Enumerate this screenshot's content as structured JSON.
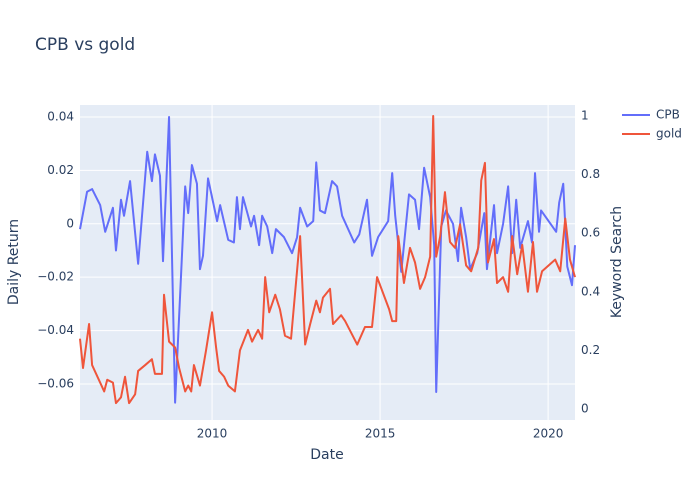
{
  "chart_data": {
    "type": "line",
    "title": "CPB vs gold",
    "x_label": "Date",
    "y_label": "Daily Return",
    "y2_label": "Keyword Search",
    "xlim": [
      2006.07,
      2020.8
    ],
    "xticks": [
      2010,
      2015,
      2020
    ],
    "ylim": [
      -0.0735,
      0.0445
    ],
    "yticks": [
      {
        "value": -0.06,
        "label": "−0.06"
      },
      {
        "value": -0.04,
        "label": "−0.04"
      },
      {
        "value": -0.02,
        "label": "−0.02"
      },
      0,
      0.02,
      0.04
    ],
    "y2lim": [
      -0.0375,
      1.0375
    ],
    "y2ticks": [
      0,
      0.2,
      0.4,
      0.6,
      0.8,
      1
    ],
    "grid": true,
    "legend": "top-right-outside",
    "series": [
      {
        "name": "CPB",
        "color": "#636efa",
        "axis": "y",
        "x": [
          2006.07,
          2006.28,
          2006.43,
          2006.67,
          2006.82,
          2007.05,
          2007.14,
          2007.29,
          2007.38,
          2007.56,
          2007.8,
          2008.07,
          2008.21,
          2008.3,
          2008.45,
          2008.54,
          2008.72,
          2008.9,
          2009.2,
          2009.29,
          2009.4,
          2009.55,
          2009.64,
          2009.73,
          2009.88,
          2010.15,
          2010.24,
          2010.48,
          2010.65,
          2010.74,
          2010.83,
          2010.92,
          2011.16,
          2011.25,
          2011.4,
          2011.49,
          2011.64,
          2011.79,
          2011.9,
          2012.14,
          2012.38,
          2012.53,
          2012.62,
          2012.83,
          2013.01,
          2013.1,
          2013.21,
          2013.36,
          2013.57,
          2013.72,
          2013.87,
          2014.23,
          2014.38,
          2014.61,
          2014.76,
          2014.94,
          2015.24,
          2015.36,
          2015.45,
          2015.63,
          2015.71,
          2015.86,
          2016.04,
          2016.16,
          2016.31,
          2016.49,
          2016.61,
          2016.67,
          2016.82,
          2016.96,
          2017.17,
          2017.32,
          2017.41,
          2017.56,
          2017.68,
          2017.89,
          2018.1,
          2018.18,
          2018.39,
          2018.48,
          2018.66,
          2018.81,
          2018.93,
          2019.05,
          2019.17,
          2019.4,
          2019.52,
          2019.61,
          2019.73,
          2019.79,
          2020.24,
          2020.33,
          2020.45,
          2020.57,
          2020.71,
          2020.8
        ],
        "values": [
          -0.002,
          0.012,
          0.013,
          0.007,
          -0.003,
          0.006,
          -0.01,
          0.009,
          0.003,
          0.016,
          -0.015,
          0.027,
          0.016,
          0.026,
          0.018,
          -0.014,
          0.04,
          -0.067,
          0.014,
          0.004,
          0.022,
          0.015,
          -0.017,
          -0.012,
          0.017,
          0.001,
          0.007,
          -0.006,
          -0.007,
          0.01,
          -0.002,
          0.01,
          -0.001,
          0.003,
          -0.008,
          0.003,
          -0.001,
          -0.011,
          -0.002,
          -0.005,
          -0.011,
          -0.005,
          0.006,
          -0.001,
          0.001,
          0.023,
          0.005,
          0.004,
          0.016,
          0.014,
          0.003,
          -0.007,
          -0.004,
          0.009,
          -0.012,
          -0.005,
          0.001,
          0.019,
          0.003,
          -0.018,
          -0.008,
          0.011,
          0.009,
          -0.002,
          0.021,
          0.01,
          -0.008,
          -0.063,
          -0.001,
          0.005,
          0,
          -0.014,
          0.006,
          -0.005,
          -0.017,
          -0.011,
          0.004,
          -0.017,
          0.007,
          -0.011,
          0,
          0.014,
          -0.011,
          0.009,
          -0.009,
          0.001,
          -0.007,
          0.019,
          -0.003,
          0.005,
          -0.003,
          0.008,
          0.015,
          -0.016,
          -0.023,
          -0.008
        ]
      },
      {
        "name": "gold",
        "color": "#ef553b",
        "axis": "y2",
        "x": [
          2006.07,
          2006.16,
          2006.34,
          2006.43,
          2006.79,
          2006.88,
          2007.05,
          2007.14,
          2007.29,
          2007.41,
          2007.53,
          2007.71,
          2007.8,
          2008.01,
          2008.21,
          2008.3,
          2008.51,
          2008.57,
          2008.72,
          2008.9,
          2009.02,
          2009.2,
          2009.29,
          2009.38,
          2009.46,
          2009.64,
          2009.82,
          2010,
          2010.12,
          2010.21,
          2010.36,
          2010.48,
          2010.68,
          2010.83,
          2011.07,
          2011.19,
          2011.37,
          2011.49,
          2011.58,
          2011.7,
          2011.88,
          2012.02,
          2012.17,
          2012.35,
          2012.62,
          2012.77,
          2012.92,
          2013.1,
          2013.21,
          2013.3,
          2013.51,
          2013.6,
          2013.84,
          2013.96,
          2014.32,
          2014.55,
          2014.76,
          2014.91,
          2015.27,
          2015.36,
          2015.48,
          2015.54,
          2015.71,
          2015.89,
          2016.04,
          2016.19,
          2016.34,
          2016.49,
          2016.58,
          2016.67,
          2016.79,
          2016.93,
          2017.08,
          2017.23,
          2017.38,
          2017.56,
          2017.71,
          2017.92,
          2018.01,
          2018.12,
          2018.21,
          2018.39,
          2018.48,
          2018.66,
          2018.81,
          2018.93,
          2019.08,
          2019.23,
          2019.4,
          2019.55,
          2019.67,
          2019.82,
          2020.21,
          2020.36,
          2020.51,
          2020.65,
          2020.8
        ],
        "values": [
          0.24,
          0.14,
          0.29,
          0.15,
          0.06,
          0.1,
          0.09,
          0.02,
          0.04,
          0.11,
          0.02,
          0.05,
          0.13,
          0.15,
          0.17,
          0.12,
          0.12,
          0.39,
          0.23,
          0.21,
          0.14,
          0.06,
          0.08,
          0.06,
          0.15,
          0.08,
          0.2,
          0.33,
          0.21,
          0.13,
          0.11,
          0.08,
          0.06,
          0.2,
          0.27,
          0.23,
          0.27,
          0.24,
          0.45,
          0.33,
          0.39,
          0.34,
          0.25,
          0.24,
          0.59,
          0.22,
          0.29,
          0.37,
          0.33,
          0.38,
          0.41,
          0.29,
          0.32,
          0.3,
          0.22,
          0.28,
          0.28,
          0.45,
          0.34,
          0.3,
          0.3,
          0.59,
          0.43,
          0.55,
          0.5,
          0.41,
          0.45,
          0.52,
          1,
          0.52,
          0.59,
          0.74,
          0.57,
          0.55,
          0.63,
          0.49,
          0.47,
          0.55,
          0.78,
          0.84,
          0.5,
          0.58,
          0.43,
          0.45,
          0.4,
          0.59,
          0.46,
          0.56,
          0.4,
          0.57,
          0.4,
          0.47,
          0.51,
          0.47,
          0.65,
          0.51,
          0.45
        ]
      }
    ]
  }
}
